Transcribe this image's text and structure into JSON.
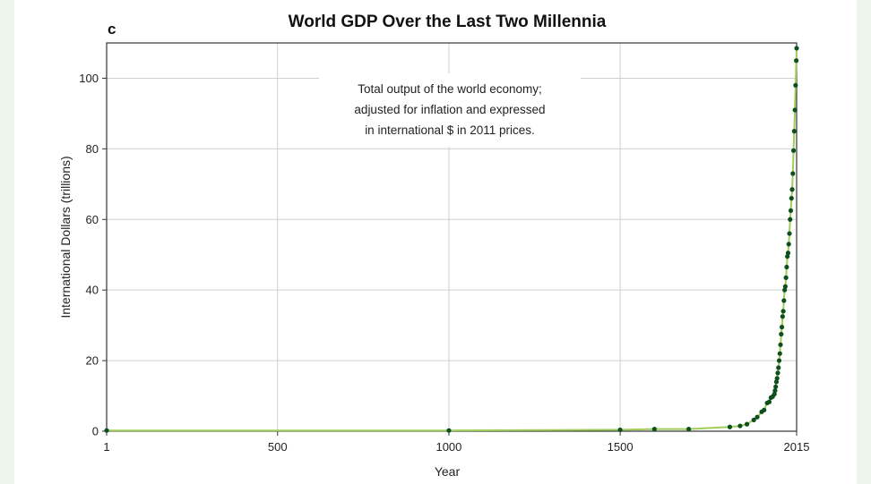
{
  "chart_data": {
    "type": "line",
    "panel_label": "c",
    "title": "World GDP Over the Last Two Millennia",
    "xlabel": "Year",
    "ylabel": "International Dollars (trillions)",
    "annotation": [
      "Total output of the world economy;",
      "adjusted for inflation and expressed",
      "in international $ in 2011 prices."
    ],
    "xlim": [
      1,
      2015
    ],
    "ylim": [
      0,
      110
    ],
    "x_ticks": [
      1,
      500,
      1000,
      1500,
      2015
    ],
    "y_ticks": [
      0,
      20,
      40,
      60,
      80,
      100
    ],
    "grid": true,
    "line_color": "#9fcd5a",
    "marker_color": "#0e4f1e",
    "series": [
      {
        "x": [
          1,
          1000,
          1500,
          1600,
          1700,
          1820,
          1850,
          1870,
          1890,
          1900,
          1913,
          1920,
          1929,
          1935,
          1940,
          1945,
          1950,
          1952,
          1954,
          1956,
          1958,
          1960,
          1962,
          1964,
          1966,
          1968,
          1970,
          1972,
          1974,
          1976,
          1978,
          1980,
          1982,
          1984,
          1986,
          1988,
          1990,
          1992,
          1994,
          1996,
          1998,
          2000,
          2002,
          2004,
          2006,
          2008,
          2010,
          2012,
          2014,
          2015
        ],
        "y": [
          0.2,
          0.2,
          0.4,
          0.6,
          0.6,
          1.2,
          1.5,
          2.0,
          3.2,
          4.0,
          5.5,
          6.0,
          8.0,
          8.3,
          9.5,
          9.8,
          10.5,
          11.5,
          12.6,
          14.0,
          15.0,
          16.5,
          18.0,
          20.0,
          22.0,
          24.5,
          27.5,
          29.5,
          32.5,
          34.0,
          37.0,
          40.0,
          41.0,
          43.5,
          46.5,
          49.5,
          50.5,
          53.0,
          56.0,
          60.0,
          62.5,
          66.0,
          68.5,
          73.0,
          79.5,
          85.0,
          91.0,
          98.0,
          105.0,
          108.5
        ]
      }
    ]
  }
}
